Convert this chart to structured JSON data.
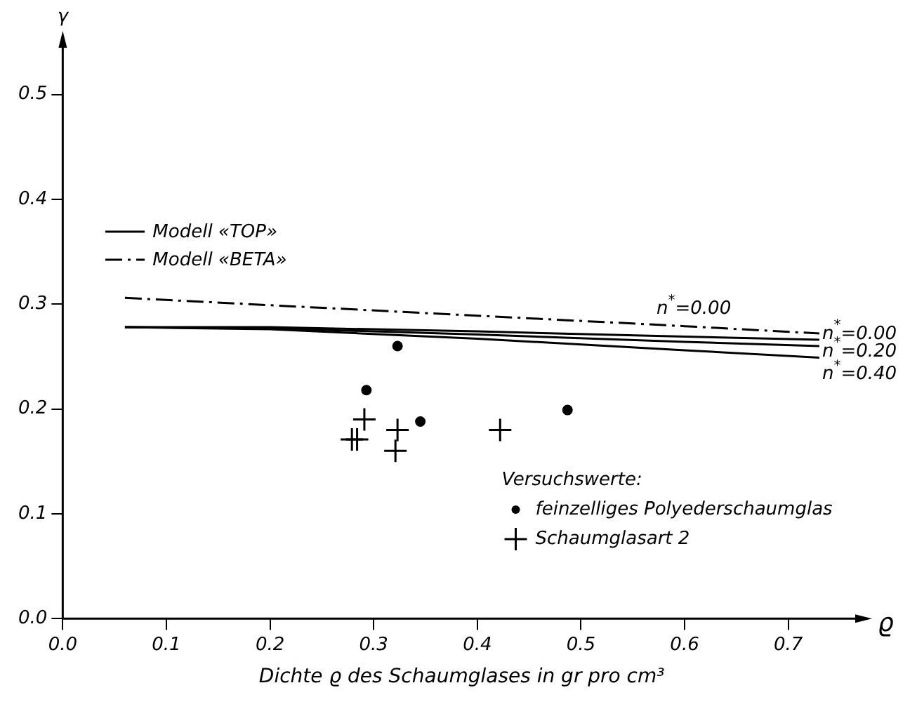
{
  "chart_data": {
    "type": "scatter",
    "xlabel": "Dichte ϱ des Schaumglases in gr pro cm³",
    "ylabel": "γ",
    "legend_title": "Versuchswerte:",
    "legend": "right",
    "xlim": [
      0,
      0.77
    ],
    "ylim": [
      0,
      0.55
    ],
    "xticks": [
      {
        "value": 0,
        "label": "0.0"
      },
      0.1,
      0.2,
      0.3,
      0.4,
      0.5,
      0.6,
      0.7
    ],
    "yticks": [
      {
        "value": 0,
        "label": "0.0"
      },
      0.1,
      0.2,
      0.3,
      0.4,
      0.5
    ],
    "grid": false,
    "series": [
      {
        "type": "line",
        "name": "n$^{*}$=0.00",
        "color": "#000000",
        "line_style": "solid",
        "marker": "none",
        "x": [
          0.06,
          0.2,
          0.4,
          0.6,
          0.73
        ],
        "values": [
          0.278,
          0.278,
          0.274,
          0.269,
          0.266
        ]
      },
      {
        "type": "line",
        "name": "n$^{*}$=0.20",
        "color": "#000000",
        "line_style": "solid",
        "marker": "none",
        "x": [
          0.06,
          0.2,
          0.4,
          0.6,
          0.73
        ],
        "values": [
          0.278,
          0.277,
          0.271,
          0.264,
          0.26
        ]
      },
      {
        "type": "line",
        "name": "n$^{*}$=0.40",
        "color": "#000000",
        "line_style": "solid",
        "marker": "none",
        "x": [
          0.06,
          0.2,
          0.4,
          0.6,
          0.73
        ],
        "values": [
          0.278,
          0.276,
          0.267,
          0.256,
          0.249
        ]
      },
      {
        "type": "line",
        "name": "n$^{*}$=0.00",
        "color": "#000000",
        "line_style": "dashed",
        "marker": "none",
        "x": [
          0.06,
          0.2,
          0.4,
          0.6,
          0.73
        ],
        "values": [
          0.306,
          0.299,
          0.289,
          0.279,
          0.272
        ]
      },
      {
        "name": "feinzelliges Polyederschaumglas",
        "color": "#000000",
        "marker": "circle",
        "x": [
          0.293,
          0.323,
          0.345,
          0.487
        ],
        "values": [
          0.218,
          0.26,
          0.188,
          0.199
        ]
      },
      {
        "name": "Schaumglasart 2",
        "color": "#000000",
        "marker": "cross",
        "x": [
          0.279,
          0.284,
          0.291,
          0.323,
          0.321,
          0.422
        ],
        "values": [
          0.171,
          0.171,
          0.19,
          0.18,
          0.16,
          0.18
        ]
      }
    ],
    "annotations": [
      "Modell «TOP»",
      "Modell «BETA»",
      "ϱ"
    ]
  }
}
